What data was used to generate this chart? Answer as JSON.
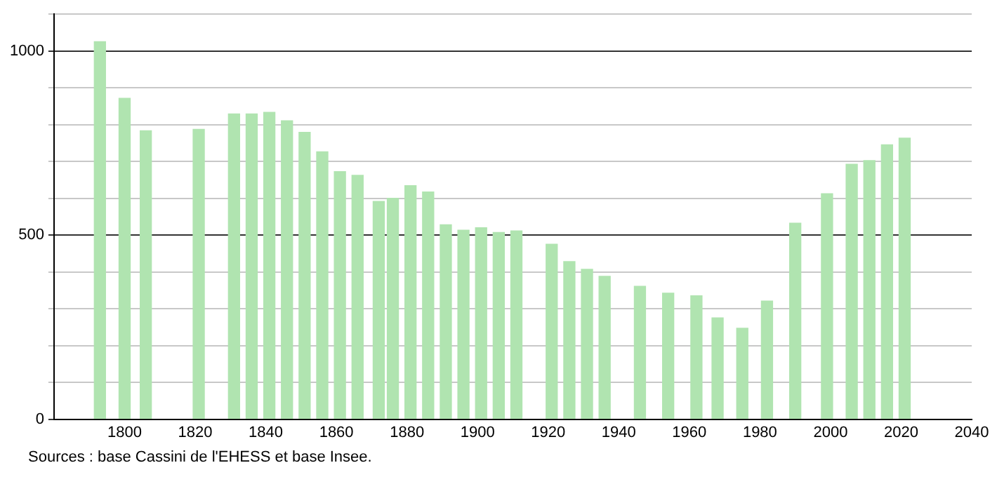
{
  "chart_data": {
    "type": "bar",
    "x": [
      1793,
      1800,
      1806,
      1821,
      1831,
      1836,
      1841,
      1846,
      1851,
      1856,
      1861,
      1866,
      1872,
      1876,
      1881,
      1886,
      1891,
      1896,
      1901,
      1906,
      1911,
      1921,
      1926,
      1931,
      1936,
      1946,
      1954,
      1962,
      1968,
      1975,
      1982,
      1990,
      1999,
      2006,
      2011,
      2016,
      2021
    ],
    "values": [
      1025,
      871,
      783,
      787,
      829,
      829,
      833,
      810,
      779,
      726,
      672,
      662,
      591,
      600,
      634,
      617,
      528,
      513,
      520,
      507,
      511,
      475,
      428,
      407,
      388,
      361,
      342,
      335,
      275,
      247,
      321,
      532,
      612,
      692,
      702,
      745,
      763
    ],
    "color": "#b0e4b0",
    "xlim": [
      1780,
      2040
    ],
    "xticks": [
      1800,
      1820,
      1840,
      1860,
      1880,
      1900,
      1920,
      1940,
      1960,
      1980,
      2000,
      2020,
      2040
    ],
    "ylim": [
      0,
      1100
    ],
    "yticks": [
      0,
      {
        "value": 100,
        "label": null
      },
      {
        "value": 200,
        "label": null
      },
      {
        "value": 300,
        "label": null
      },
      {
        "value": 400,
        "label": null
      },
      500,
      {
        "value": 600,
        "label": null
      },
      {
        "value": 700,
        "label": null
      },
      {
        "value": 800,
        "label": null
      },
      {
        "value": 900,
        "label": null
      },
      1000,
      {
        "value": 1100,
        "label": null
      }
    ],
    "grid": "y",
    "annotations": [
      "Sources : base Cassini de l'EHESS et base Insee."
    ]
  }
}
